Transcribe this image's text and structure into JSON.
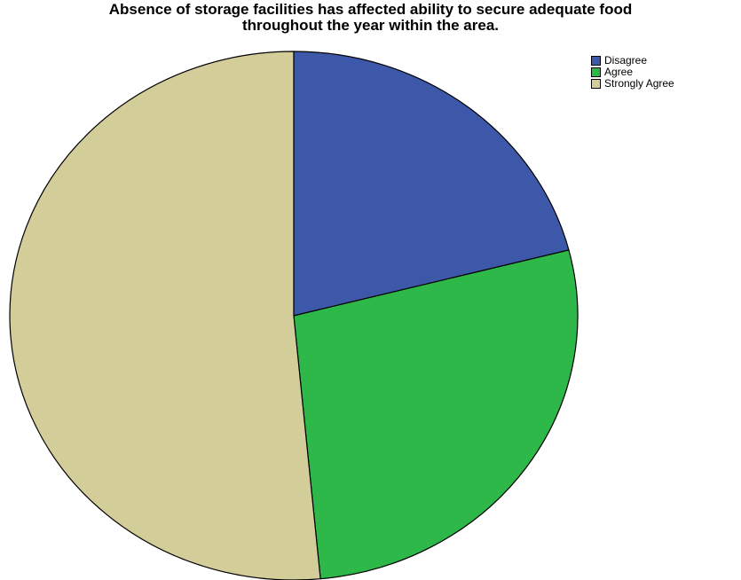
{
  "chart_data": {
    "type": "pie",
    "title_lines": [
      "Absence of storage facilities has affected ability to secure adequate food",
      "throughout the year within the area."
    ],
    "legend_position": "top-right",
    "categories": [
      "Disagree",
      "Agree",
      "Strongly Agree"
    ],
    "values": [
      21.0,
      27.5,
      51.5
    ],
    "colors": [
      "#3d58a8",
      "#2eb84a",
      "#d3cd99"
    ],
    "edge_color": "#000000"
  }
}
